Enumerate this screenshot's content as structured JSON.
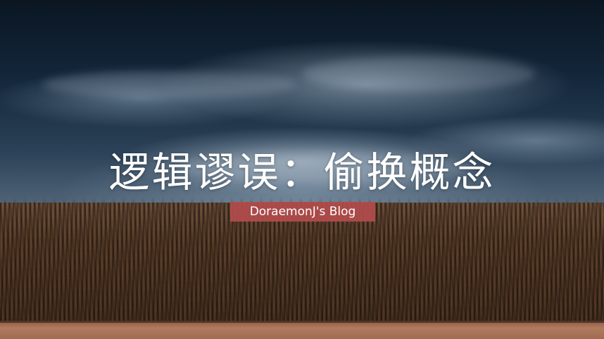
{
  "hero": {
    "title": "逻辑谬误：偷换概念",
    "blog_name": "DoraemonJ's Blog"
  },
  "colors": {
    "tag_background": "#b24c4c",
    "title_text": "#ffffff",
    "sky_dark": "#0b1622",
    "field_dark": "#2a1d15"
  }
}
